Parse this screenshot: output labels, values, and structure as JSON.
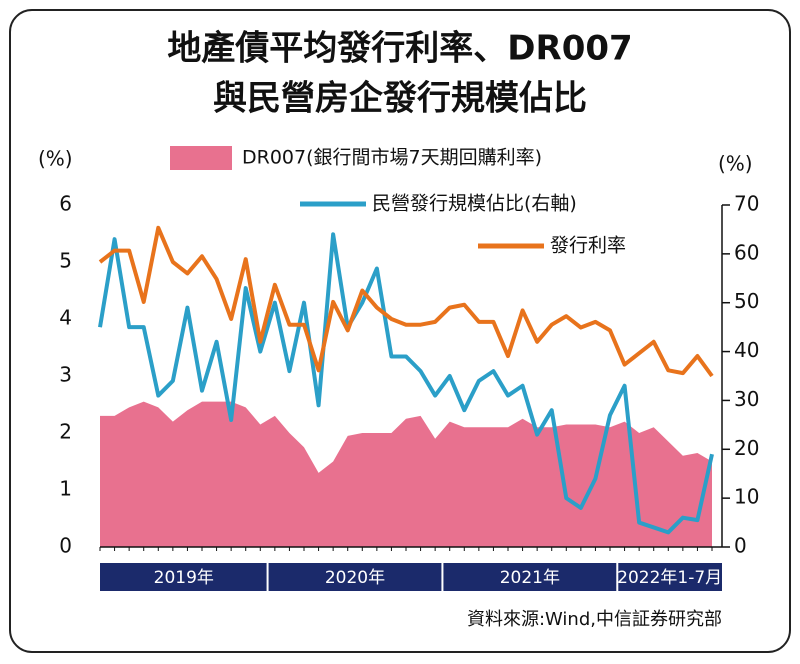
{
  "chart_data": {
    "type": "combo",
    "title": [
      "地產債平均發行利率、DR007",
      "與民營房企發行規模佔比"
    ],
    "ylabel": "(%)",
    "y2label": "(%)",
    "x_groups": [
      "2019年",
      "2020年",
      "2021年",
      "2022年1-7月"
    ],
    "categories": [
      null,
      null,
      null,
      null,
      null,
      null,
      null,
      null,
      null,
      null,
      null,
      null,
      null,
      null,
      null,
      null,
      null,
      null,
      null,
      null,
      null,
      null,
      null,
      null,
      null,
      null,
      null,
      null,
      null,
      null,
      null,
      null,
      null,
      null,
      null,
      null,
      null,
      null,
      null,
      null,
      null,
      null,
      null
    ],
    "ylim": [
      0,
      6
    ],
    "yticks": [
      0,
      1,
      2,
      3,
      4,
      5,
      6
    ],
    "y2lim": [
      0,
      70
    ],
    "y2ticks": [
      0,
      10,
      20,
      30,
      40,
      50,
      60,
      70
    ],
    "series": [
      {
        "name": "DR007(銀行間市場7天期回購利率)",
        "type": "area",
        "color": "#e8718f",
        "values": [
          2.3,
          2.3,
          2.45,
          2.55,
          2.45,
          2.2,
          2.4,
          2.55,
          2.55,
          2.55,
          2.45,
          2.15,
          2.3,
          2.0,
          1.75,
          1.3,
          1.5,
          1.95,
          2.0,
          2.0,
          2.0,
          2.25,
          2.3,
          1.9,
          2.2,
          2.1,
          2.1,
          2.1,
          2.1,
          2.25,
          2.1,
          2.1,
          2.15,
          2.15,
          2.15,
          2.1,
          2.2,
          2.0,
          2.1,
          1.85,
          1.6,
          1.65,
          1.5
        ]
      },
      {
        "name": "民營發行規模佔比(右軸)",
        "type": "line",
        "axis": "y2",
        "color": "#2b9fc8",
        "values": [
          45,
          63,
          45,
          45,
          31,
          34,
          49,
          32,
          42,
          26,
          53,
          40,
          50,
          36,
          50,
          29,
          64,
          45,
          50,
          57,
          39,
          39,
          36,
          31,
          35,
          28,
          34,
          36,
          31,
          33,
          23,
          28,
          10,
          8,
          14,
          27,
          33,
          5,
          4,
          3,
          6,
          5.5,
          19
        ]
      },
      {
        "name": "發行利率",
        "type": "line",
        "color": "#e8731c",
        "values": [
          5.0,
          5.2,
          5.2,
          4.3,
          5.6,
          5.0,
          4.8,
          5.1,
          4.7,
          4.0,
          5.05,
          3.6,
          4.6,
          3.9,
          3.9,
          3.1,
          4.3,
          3.8,
          4.5,
          4.2,
          4.0,
          3.9,
          3.9,
          3.95,
          4.2,
          4.25,
          3.95,
          3.95,
          3.35,
          4.15,
          3.6,
          3.9,
          4.05,
          3.85,
          3.95,
          3.8,
          3.2,
          3.4,
          3.6,
          3.1,
          3.05,
          3.35,
          3.0
        ]
      }
    ],
    "source": "資料來源:Wind,中信証券研究部"
  }
}
